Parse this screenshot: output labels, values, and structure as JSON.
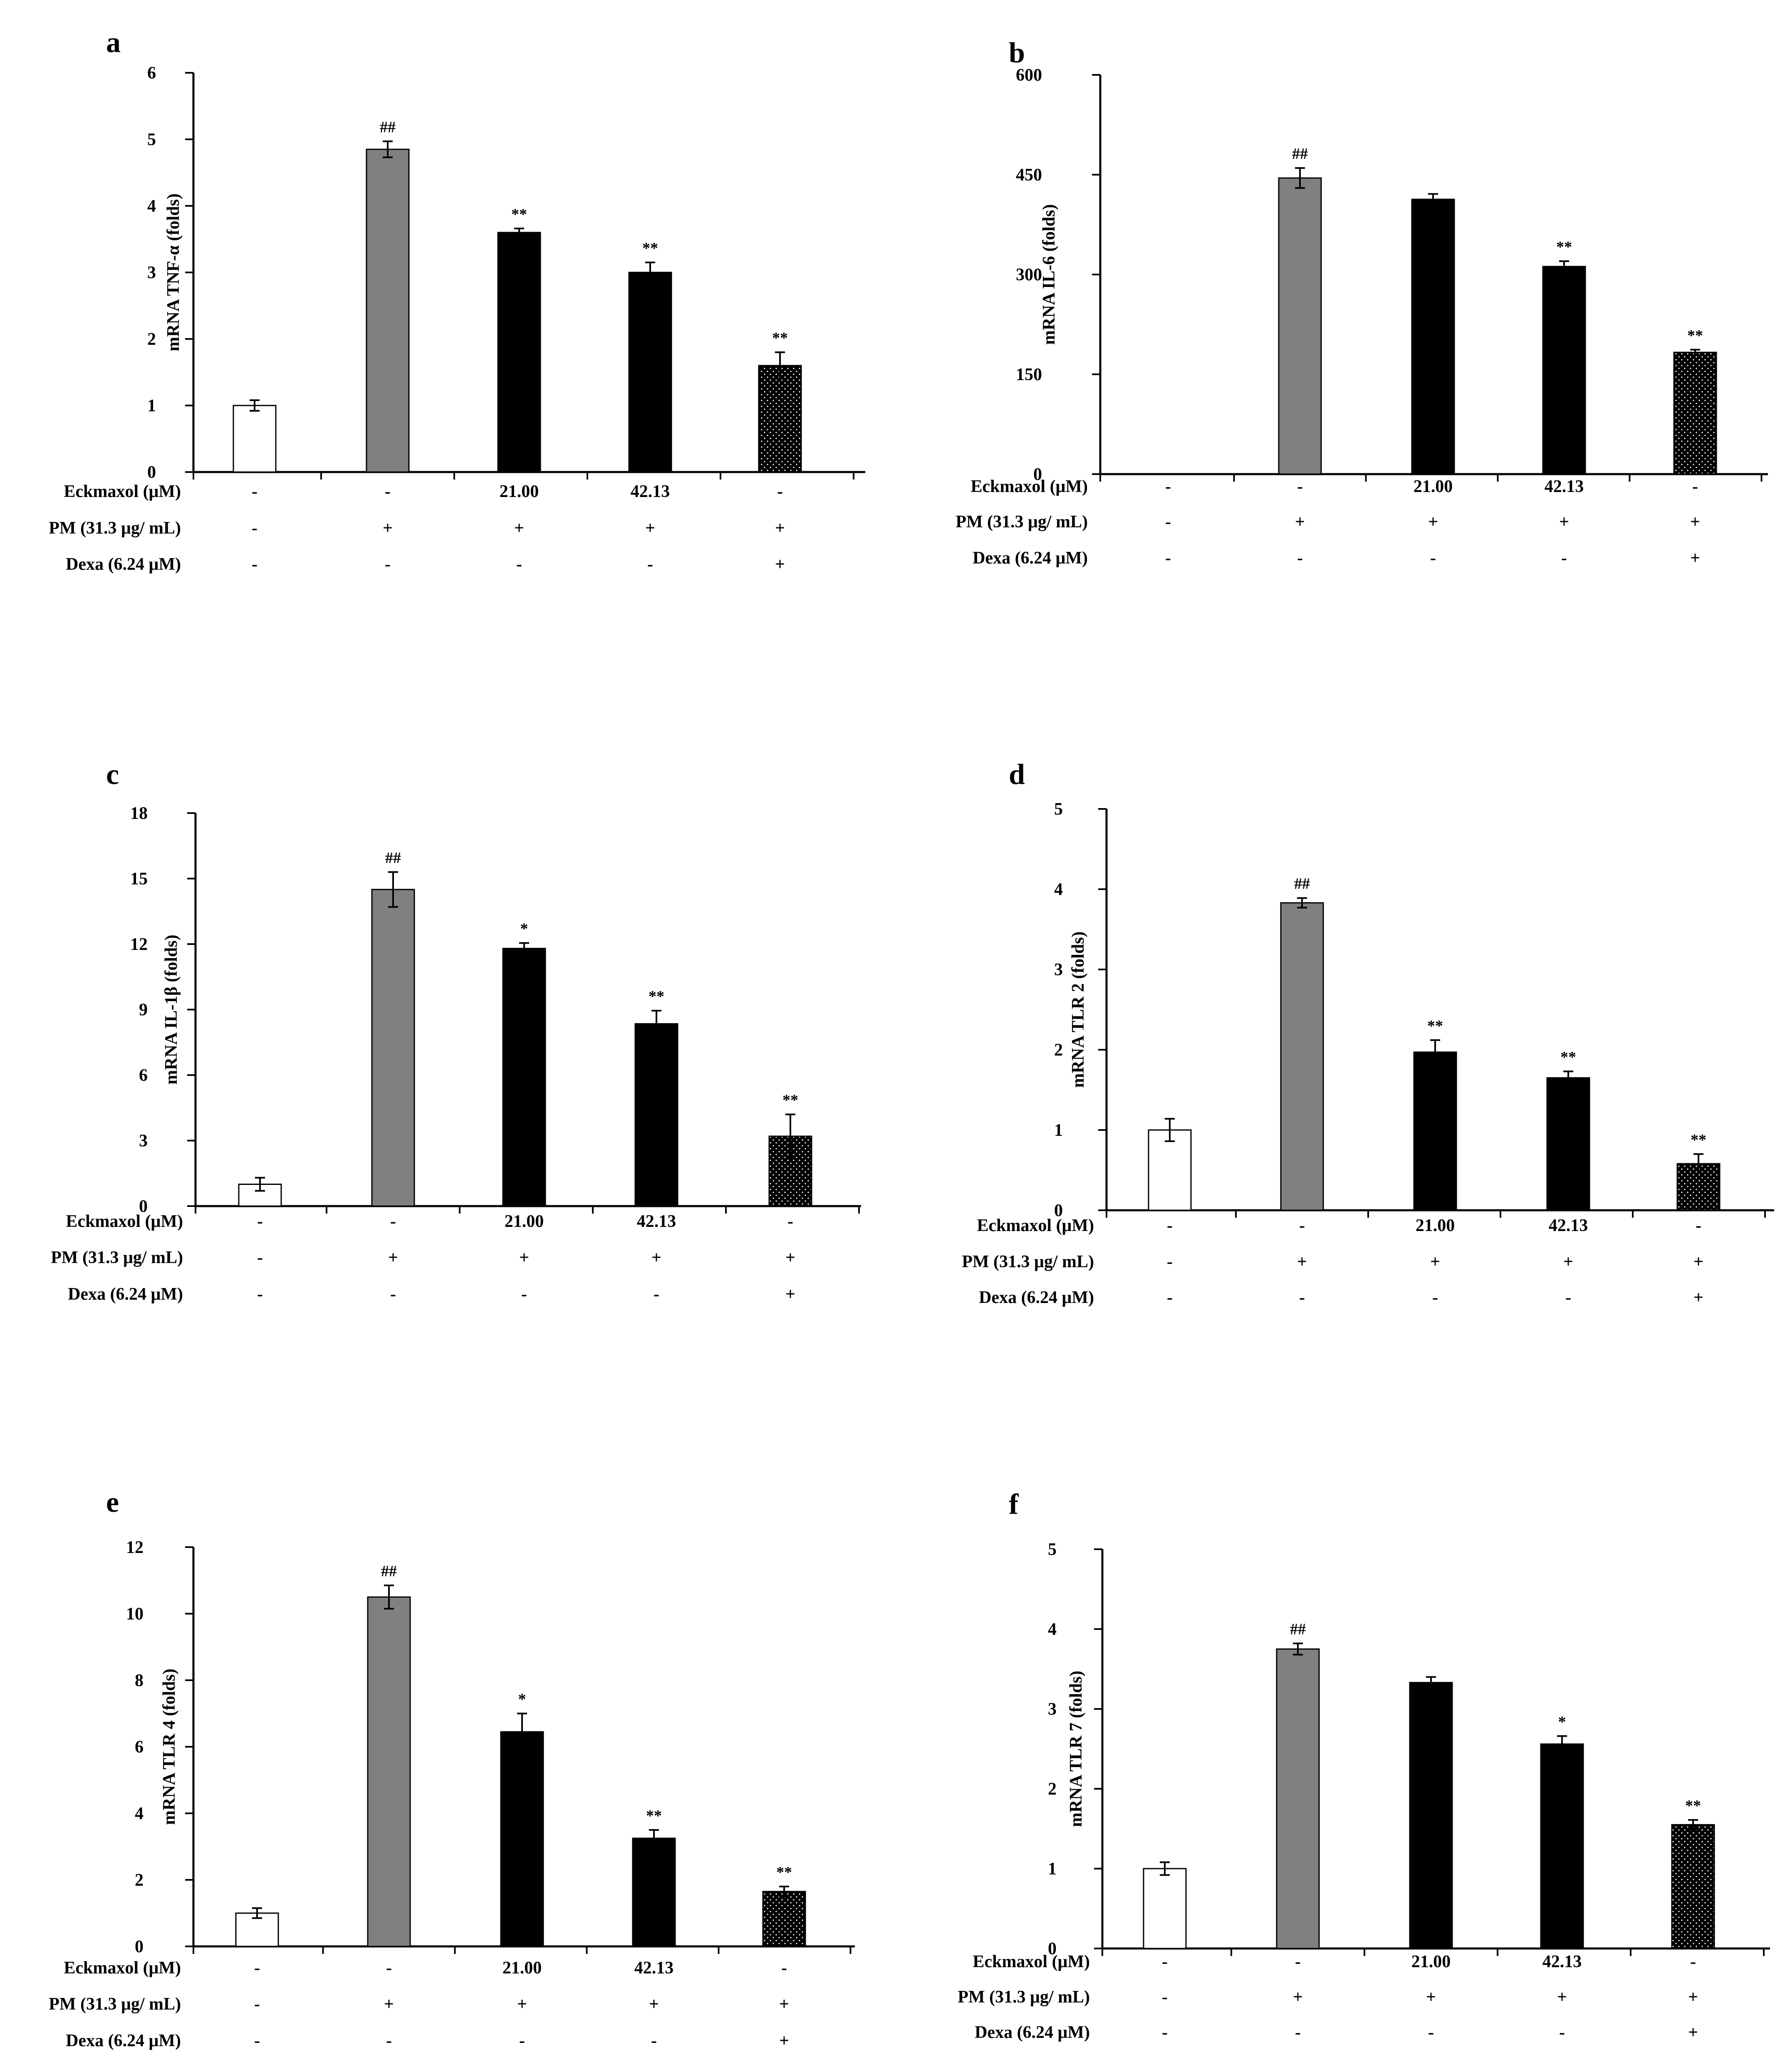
{
  "colors": {
    "control": "#ffffff",
    "pm": "#808080",
    "eckmaxol": "#000000",
    "dexa": "#111111",
    "axis": "#000000"
  },
  "conditions": {
    "row_labels": [
      "Eckmaxol (μM)",
      "PM (31.3 μg/ mL)",
      "Dexa (6.24 μM)"
    ],
    "eckmaxol": [
      "-",
      "-",
      "21.00",
      "42.13",
      "-"
    ],
    "pm": [
      "-",
      "+",
      "+",
      "+",
      "+"
    ],
    "dexa": [
      "-",
      "-",
      "-",
      "-",
      "+"
    ]
  },
  "chart_data": [
    {
      "type": "bar",
      "panel": "a",
      "ylabel": "mRNA TNF-α (folds)",
      "ylim": [
        0,
        6
      ],
      "yticks": [
        "0",
        "1",
        "2",
        "3",
        "4",
        "5",
        "6"
      ],
      "values": [
        1.0,
        4.85,
        3.6,
        3.0,
        1.6
      ],
      "errors": [
        0.08,
        0.12,
        0.06,
        0.15,
        0.2
      ],
      "significance": [
        "",
        "##",
        "**",
        "**",
        "**"
      ]
    },
    {
      "type": "bar",
      "panel": "b",
      "ylabel": "mRNA IL-6 (folds)",
      "ylim": [
        0,
        600
      ],
      "yticks": [
        "0",
        "150",
        "300",
        "450",
        "600"
      ],
      "values": [
        0,
        445,
        413,
        312,
        183
      ],
      "errors": [
        0,
        15,
        8,
        8,
        4
      ],
      "significance": [
        "",
        "##",
        "",
        "**",
        "**"
      ]
    },
    {
      "type": "bar",
      "panel": "c",
      "ylabel": "mRNA IL-1β (folds)",
      "ylim": [
        0,
        18
      ],
      "yticks": [
        "0",
        "3",
        "6",
        "9",
        "12",
        "15",
        "18"
      ],
      "values": [
        1.0,
        14.5,
        11.8,
        8.35,
        3.2
      ],
      "errors": [
        0.3,
        0.8,
        0.25,
        0.6,
        1.0
      ],
      "significance": [
        "",
        "##",
        "*",
        "**",
        "**"
      ]
    },
    {
      "type": "bar",
      "panel": "d",
      "ylabel": "mRNA TLR 2 (folds)",
      "ylim": [
        0,
        5
      ],
      "yticks": [
        "0",
        "1",
        "2",
        "3",
        "4",
        "5"
      ],
      "values": [
        1.0,
        3.83,
        1.97,
        1.65,
        0.58
      ],
      "errors": [
        0.14,
        0.06,
        0.15,
        0.08,
        0.12
      ],
      "significance": [
        "",
        "##",
        "**",
        "**",
        "**"
      ]
    },
    {
      "type": "bar",
      "panel": "e",
      "ylabel": "mRNA TLR 4 (folds)",
      "ylim": [
        0,
        12
      ],
      "yticks": [
        "0",
        "2",
        "4",
        "6",
        "8",
        "10",
        "12"
      ],
      "values": [
        1.0,
        10.5,
        6.45,
        3.25,
        1.65
      ],
      "errors": [
        0.15,
        0.35,
        0.55,
        0.25,
        0.15
      ],
      "significance": [
        "",
        "##",
        "*",
        "**",
        "**"
      ]
    },
    {
      "type": "bar",
      "panel": "f",
      "ylabel": "mRNA TLR 7 (folds)",
      "ylim": [
        0,
        5
      ],
      "yticks": [
        "0",
        "1",
        "2",
        "3",
        "4",
        "5"
      ],
      "values": [
        1.0,
        3.75,
        3.33,
        2.56,
        1.55
      ],
      "errors": [
        0.08,
        0.07,
        0.07,
        0.1,
        0.06
      ],
      "significance": [
        "",
        "##",
        "",
        "*",
        "**"
      ]
    }
  ]
}
